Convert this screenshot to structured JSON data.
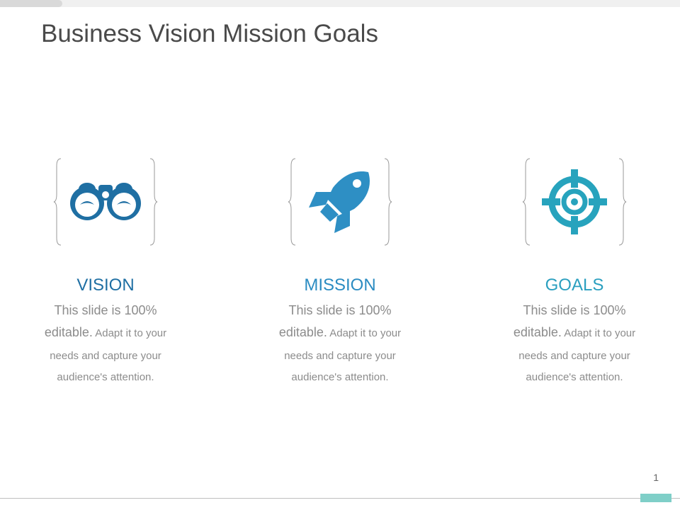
{
  "slide": {
    "title": "Business Vision Mission Goals",
    "page_number": "1"
  },
  "colors": {
    "vision_icon": "#1f6fa3",
    "mission_icon": "#2e8fc4",
    "goals_icon": "#27a3bd",
    "vision_heading": "#1f6fa3",
    "mission_heading": "#2b8cc2",
    "goals_heading": "#2a9fbf",
    "body_text": "#8c8c8c",
    "accent_bar": "#7fcfc8"
  },
  "columns": [
    {
      "icon": "binoculars-icon",
      "heading": "VISION",
      "body_line1": "This slide is 100%",
      "body_line2a": "editable.",
      "body_line2b": " Adapt it to your",
      "body_line3": "needs and capture your",
      "body_line4": "audience's attention."
    },
    {
      "icon": "rocket-icon",
      "heading": "MISSION",
      "body_line1": "This slide is 100%",
      "body_line2a": "editable.",
      "body_line2b": " Adapt it to your",
      "body_line3": "needs and capture your",
      "body_line4": "audience's attention."
    },
    {
      "icon": "target-icon",
      "heading": "GOALS",
      "body_line1": "This slide is 100%",
      "body_line2a": "editable.",
      "body_line2b": " Adapt it to your",
      "body_line3": "needs and capture your",
      "body_line4": "audience's attention."
    }
  ]
}
